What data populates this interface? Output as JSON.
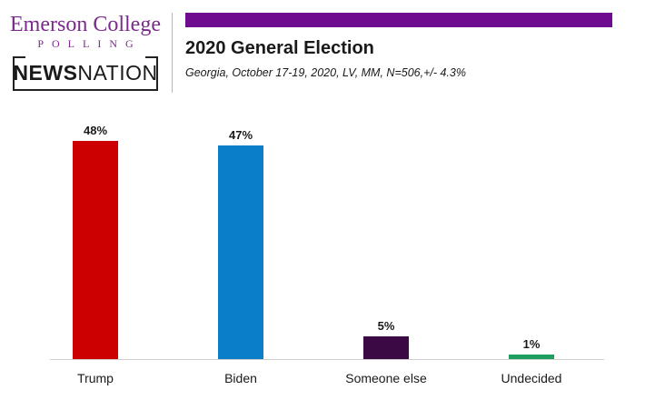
{
  "branding": {
    "emerson": "Emerson College",
    "polling": "POLLING",
    "news": "NEWS",
    "nation": "NATION"
  },
  "colors": {
    "title_bar": "#6f0b8f",
    "brand": "#7a2a8a"
  },
  "chart_data": {
    "type": "bar",
    "title": "2020 General Election",
    "subtitle": "Georgia, October 17-19, 2020, LV, MM, N=506,+/- 4.3%",
    "categories": [
      "Trump",
      "Biden",
      "Someone else",
      "Undecided"
    ],
    "values": [
      48,
      47,
      5,
      1
    ],
    "value_labels": [
      "48%",
      "47%",
      "5%",
      "1%"
    ],
    "colors": [
      "#cc0000",
      "#0a7ec8",
      "#3b0a45",
      "#1e9e60"
    ],
    "ylim": [
      0,
      50
    ],
    "xlabel": "",
    "ylabel": "",
    "grid": false,
    "legend": "none"
  }
}
